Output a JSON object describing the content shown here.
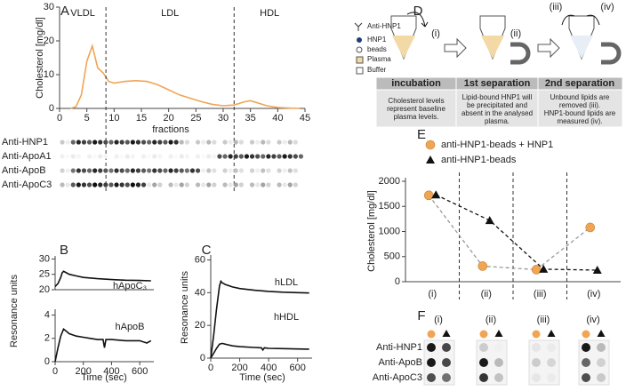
{
  "panel_labels": [
    "A",
    "B",
    "C",
    "D",
    "E",
    "F"
  ],
  "chart_data": [
    {
      "type": "line",
      "xlabel": "fractions",
      "ylabel": "Cholesterol [mg/dl]",
      "regions": [
        "VLDL",
        "LDL",
        "HDL"
      ],
      "dividers": [
        8.5,
        32
      ],
      "xlim": [
        0,
        45
      ],
      "xticks": [
        0,
        5,
        10,
        15,
        20,
        25,
        30,
        35,
        40,
        45
      ],
      "ylim": [
        0,
        30
      ],
      "yticks": [
        0,
        10,
        20,
        30
      ],
      "series": [
        {
          "color": "#f0a555",
          "x": [
            2,
            3,
            4,
            5,
            6,
            7,
            8,
            9,
            10,
            12,
            14,
            16,
            18,
            20,
            22,
            24,
            26,
            28,
            30,
            32,
            34,
            35,
            36,
            38,
            40,
            42,
            44
          ],
          "values": [
            0,
            0.5,
            4,
            14,
            18.5,
            12,
            10.5,
            8,
            7.5,
            8,
            8.2,
            8,
            7,
            5.5,
            4,
            3,
            2,
            1.2,
            0.8,
            1,
            2,
            2.3,
            1.8,
            0.8,
            0.3,
            0.1,
            0
          ]
        }
      ]
    },
    {
      "type": "line",
      "xlim": [
        0,
        700
      ],
      "ylim": [
        20,
        31
      ],
      "yticks": [
        20,
        25,
        30
      ],
      "series": [
        {
          "name": "hApoC₃",
          "color": "#111",
          "x": [
            0,
            20,
            40,
            50,
            60,
            80,
            100,
            150,
            200,
            300,
            400,
            500,
            600,
            680
          ],
          "values": [
            21,
            22,
            24,
            25.5,
            26,
            25.5,
            25,
            24.5,
            24,
            23.6,
            23.3,
            23.1,
            23,
            22.9
          ]
        }
      ]
    },
    {
      "type": "line",
      "xlabel": "Time (sec)",
      "ylabel": "Resonance units",
      "xlim": [
        0,
        700
      ],
      "xticks": [
        0,
        200,
        400,
        600
      ],
      "ylim": [
        0,
        4.5
      ],
      "yticks": [
        0,
        2,
        4
      ],
      "series": [
        {
          "name": "hApoB",
          "color": "#111",
          "x": [
            0,
            20,
            40,
            60,
            80,
            100,
            150,
            200,
            250,
            300,
            340,
            350,
            360,
            400,
            500,
            600,
            650,
            680
          ],
          "values": [
            0,
            1.2,
            2.2,
            2.8,
            2.6,
            2.4,
            2.2,
            2.1,
            2,
            1.9,
            1.9,
            1.2,
            1.9,
            1.9,
            1.8,
            1.8,
            1.6,
            1.8
          ]
        }
      ]
    },
    {
      "type": "line",
      "xlabel": "Time (sec)",
      "ylabel": "Resonance units",
      "xlim": [
        0,
        700
      ],
      "xticks": [
        0,
        200,
        400,
        600
      ],
      "ylim": [
        0,
        63
      ],
      "yticks": [
        0,
        20,
        40,
        60
      ],
      "series": [
        {
          "name": "hLDL",
          "color": "#111",
          "x": [
            0,
            20,
            40,
            60,
            70,
            80,
            100,
            150,
            200,
            300,
            400,
            500,
            600,
            680
          ],
          "values": [
            0,
            14,
            30,
            44,
            47,
            46,
            45,
            43.5,
            42.5,
            41.5,
            40.8,
            40.3,
            40,
            39.8
          ]
        },
        {
          "name": "hHDL",
          "color": "#111",
          "x": [
            0,
            20,
            40,
            60,
            80,
            100,
            150,
            200,
            300,
            350,
            360,
            370,
            400,
            500,
            600,
            680
          ],
          "values": [
            0,
            3,
            6,
            8.5,
            9,
            8.5,
            7.5,
            7,
            6.5,
            6.3,
            5,
            6.3,
            6,
            5.8,
            5.6,
            5.5
          ]
        }
      ]
    },
    {
      "type": "dotline",
      "ylabel": "Cholesterol [mg/dl]",
      "categories": [
        "(i)",
        "(ii)",
        "(iii)",
        "(iv)"
      ],
      "ylim": [
        0,
        2000
      ],
      "yticks": [
        0,
        500,
        1000,
        1500,
        2000
      ],
      "series": [
        {
          "name": "anti-HNP1-beads + HNP1",
          "marker": "circle",
          "color": "#f0a555",
          "line_color": "#999",
          "values": [
            1720,
            310,
            240,
            1080
          ]
        },
        {
          "name": "anti-HNP1-beads",
          "marker": "triangle",
          "color": "#111",
          "line_color": "#111",
          "values": [
            1730,
            1220,
            250,
            230
          ]
        }
      ]
    }
  ],
  "blots_A": [
    "Anti-HNP1",
    "Anti-ApoA1",
    "Anti-ApoB",
    "Anti-ApoC3"
  ],
  "diagram": {
    "legend": [
      "Anti-HNP1",
      "HNP1",
      "beads",
      "Plasma",
      "Buffer"
    ],
    "steps": [
      "(i)",
      "(ii)",
      "(iii)",
      "(iv)"
    ],
    "table": {
      "headers": [
        "incubation",
        "1st separation",
        "2nd separation"
      ],
      "cells": [
        [
          "Cholesterol levels",
          "represent baseline",
          "plasma levels."
        ],
        [
          "Lipid-bound HNP1 will",
          "be precipitated and",
          "absent in the analysed",
          "plasma."
        ],
        [
          "Unbound lipids are",
          "removed (iii).",
          "HNP1-bound lipids are",
          "measured (iv)."
        ]
      ]
    }
  },
  "blots_F": {
    "columns": [
      "(i)",
      "(ii)",
      "(iii)",
      "(iv)"
    ],
    "rows": [
      "Anti-HNP1",
      "Anti-ApoB",
      "Anti-ApoC3"
    ]
  }
}
